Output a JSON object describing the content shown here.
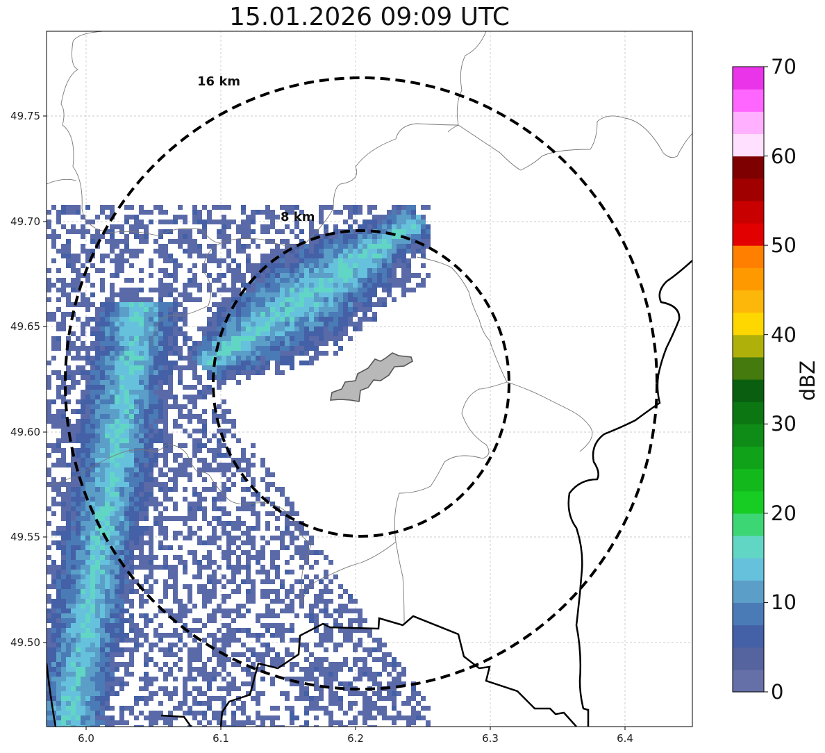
{
  "title": "15.01.2026 09:09 UTC",
  "map": {
    "lon_range": [
      5.97,
      6.45
    ],
    "lat_range": [
      49.46,
      49.79
    ],
    "center": {
      "lon": 6.205,
      "lat": 49.623
    },
    "grid": true,
    "x_ticks": [
      "6.0",
      "6.1",
      "6.2",
      "6.3",
      "6.4"
    ],
    "y_ticks": [
      "49.75",
      "49.70",
      "49.65",
      "49.60",
      "49.55",
      "49.50"
    ],
    "range_rings": [
      {
        "label": "8 km",
        "radius_km": 8
      },
      {
        "label": "16 km",
        "radius_km": 16
      }
    ],
    "features": [
      "municipal-boundaries",
      "national-border",
      "river",
      "city-area"
    ]
  },
  "colorbar": {
    "label": "dBZ",
    "ticks": [
      "0",
      "10",
      "20",
      "30",
      "40",
      "50",
      "60",
      "70"
    ],
    "min": 0,
    "max": 70,
    "colors": [
      "#6670a8",
      "#55649e",
      "#4460a6",
      "#4a7bb6",
      "#5b9ec8",
      "#66c1dd",
      "#62d6c4",
      "#3dd674",
      "#17cc23",
      "#12b81c",
      "#10a31a",
      "#0f8c17",
      "#0c7613",
      "#095f0f",
      "#447a0e",
      "#afb00a",
      "#ffd700",
      "#fdb60a",
      "#fe9a00",
      "#ff7f00",
      "#e30000",
      "#c80000",
      "#a00000",
      "#7e0000",
      "#ffe0ff",
      "#ffb0ff",
      "#ff66ff",
      "#e934e9"
    ]
  },
  "echo_regions": [
    {
      "name": "north-cell",
      "max_dbz": 18
    },
    {
      "name": "west-band",
      "max_dbz": 16
    }
  ]
}
